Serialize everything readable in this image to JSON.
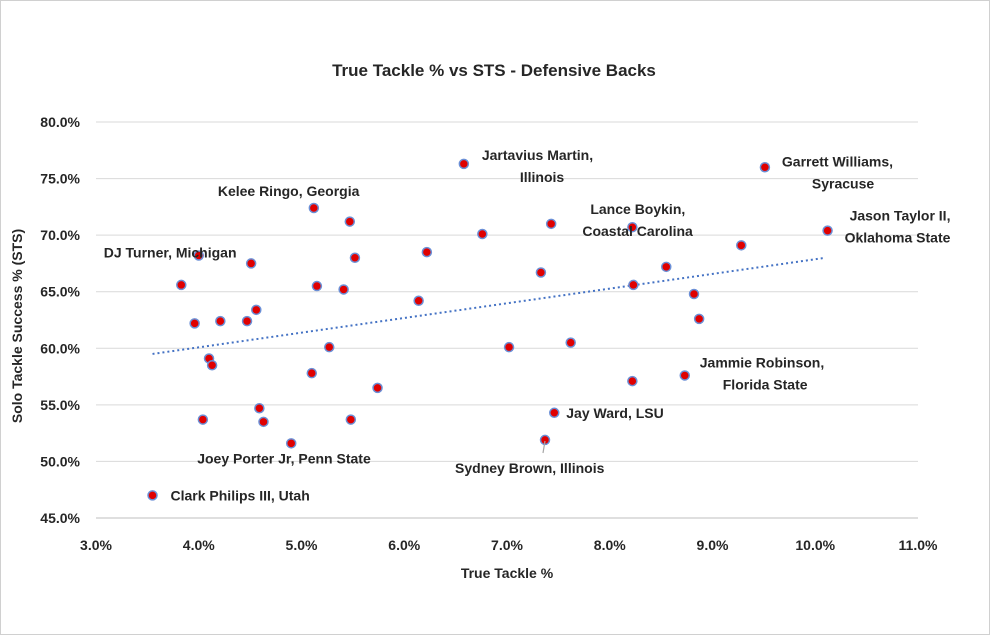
{
  "chart_data": {
    "type": "scatter",
    "title": "True Tackle % vs STS - Defensive Backs",
    "xlabel": "True Tackle %",
    "ylabel": "Solo Tackle Success % (STS)",
    "xlim": [
      0.03,
      0.11
    ],
    "ylim": [
      0.45,
      0.8
    ],
    "xticks": [
      "3.0%",
      "4.0%",
      "5.0%",
      "6.0%",
      "7.0%",
      "8.0%",
      "9.0%",
      "10.0%",
      "11.0%"
    ],
    "yticks": [
      "45.0%",
      "50.0%",
      "55.0%",
      "60.0%",
      "65.0%",
      "70.0%",
      "75.0%",
      "80.0%"
    ],
    "grid": "horizontal",
    "legend": "none",
    "marker_color": "#e00000",
    "marker_edge_color": "#6b8fd6",
    "trendline": {
      "style": "dotted",
      "color": "#4472c4",
      "x": [
        0.0355,
        0.101
      ],
      "y": [
        0.595,
        0.68
      ]
    },
    "points": [
      {
        "x": 0.0355,
        "y": 0.47,
        "label": "Clark Philips III, Utah"
      },
      {
        "x": 0.0383,
        "y": 0.656,
        "label": ""
      },
      {
        "x": 0.0396,
        "y": 0.622,
        "label": ""
      },
      {
        "x": 0.04,
        "y": 0.682,
        "label": "DJ Turner, Michigan"
      },
      {
        "x": 0.0404,
        "y": 0.537,
        "label": ""
      },
      {
        "x": 0.041,
        "y": 0.591,
        "label": ""
      },
      {
        "x": 0.0413,
        "y": 0.585,
        "label": ""
      },
      {
        "x": 0.0421,
        "y": 0.624,
        "label": ""
      },
      {
        "x": 0.0447,
        "y": 0.624,
        "label": ""
      },
      {
        "x": 0.0451,
        "y": 0.675,
        "label": ""
      },
      {
        "x": 0.0456,
        "y": 0.634,
        "label": ""
      },
      {
        "x": 0.0459,
        "y": 0.547,
        "label": ""
      },
      {
        "x": 0.0463,
        "y": 0.535,
        "label": ""
      },
      {
        "x": 0.049,
        "y": 0.516,
        "label": "Joey Porter Jr, Penn State"
      },
      {
        "x": 0.051,
        "y": 0.578,
        "label": ""
      },
      {
        "x": 0.0512,
        "y": 0.724,
        "label": "Kelee Ringo, Georgia"
      },
      {
        "x": 0.0515,
        "y": 0.655,
        "label": ""
      },
      {
        "x": 0.0527,
        "y": 0.601,
        "label": ""
      },
      {
        "x": 0.0541,
        "y": 0.652,
        "label": ""
      },
      {
        "x": 0.0547,
        "y": 0.712,
        "label": ""
      },
      {
        "x": 0.0548,
        "y": 0.537,
        "label": ""
      },
      {
        "x": 0.0552,
        "y": 0.68,
        "label": ""
      },
      {
        "x": 0.0574,
        "y": 0.565,
        "label": ""
      },
      {
        "x": 0.0614,
        "y": 0.642,
        "label": ""
      },
      {
        "x": 0.0622,
        "y": 0.685,
        "label": ""
      },
      {
        "x": 0.0658,
        "y": 0.763,
        "label": "Jartavius Martin, Illinois"
      },
      {
        "x": 0.0676,
        "y": 0.701,
        "label": ""
      },
      {
        "x": 0.0702,
        "y": 0.601,
        "label": ""
      },
      {
        "x": 0.0733,
        "y": 0.667,
        "label": ""
      },
      {
        "x": 0.0737,
        "y": 0.519,
        "label": "Sydney Brown, Illinois"
      },
      {
        "x": 0.0743,
        "y": 0.71,
        "label": ""
      },
      {
        "x": 0.0746,
        "y": 0.543,
        "label": "Jay Ward, LSU"
      },
      {
        "x": 0.0762,
        "y": 0.605,
        "label": ""
      },
      {
        "x": 0.0822,
        "y": 0.707,
        "label": "Lance Boykin, Coastal Carolina"
      },
      {
        "x": 0.0822,
        "y": 0.571,
        "label": ""
      },
      {
        "x": 0.0823,
        "y": 0.656,
        "label": ""
      },
      {
        "x": 0.0855,
        "y": 0.672,
        "label": ""
      },
      {
        "x": 0.0873,
        "y": 0.576,
        "label": "Jammie Robinson, Florida State"
      },
      {
        "x": 0.0882,
        "y": 0.648,
        "label": ""
      },
      {
        "x": 0.0887,
        "y": 0.626,
        "label": ""
      },
      {
        "x": 0.0928,
        "y": 0.691,
        "label": ""
      },
      {
        "x": 0.0951,
        "y": 0.76,
        "label": "Garrett Williams, Syracuse"
      },
      {
        "x": 0.1012,
        "y": 0.704,
        "label": "Jason Taylor II, Oklahoma State"
      }
    ]
  }
}
